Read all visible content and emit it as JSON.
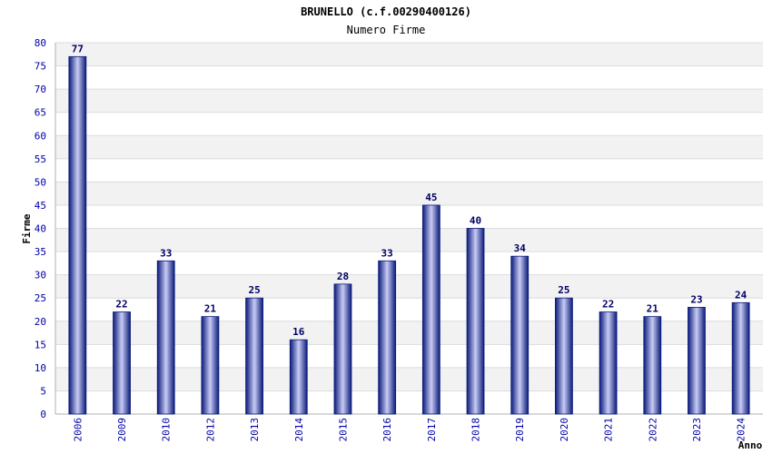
{
  "chart_data": {
    "type": "bar",
    "title": "BRUNELLO (c.f.00290400126)",
    "subtitle": "Numero Firme",
    "xlabel": "Anno",
    "ylabel": "Firme",
    "ylim": [
      0,
      80
    ],
    "ytick_step": 5,
    "grid": true,
    "categories": [
      "2006",
      "2009",
      "2010",
      "2012",
      "2013",
      "2014",
      "2015",
      "2016",
      "2017",
      "2018",
      "2019",
      "2020",
      "2021",
      "2022",
      "2023",
      "2024"
    ],
    "values": [
      77,
      22,
      33,
      21,
      25,
      16,
      28,
      33,
      45,
      40,
      34,
      25,
      22,
      21,
      23,
      24
    ],
    "colors": {
      "bar_dark": "#0a1a7a",
      "bar_light": "#c8ccf4",
      "tick_text": "#0000aa",
      "data_label": "#000066",
      "band": "#f2f2f2",
      "grid": "#dcdcdc",
      "axis": "#b0b0b0"
    }
  }
}
